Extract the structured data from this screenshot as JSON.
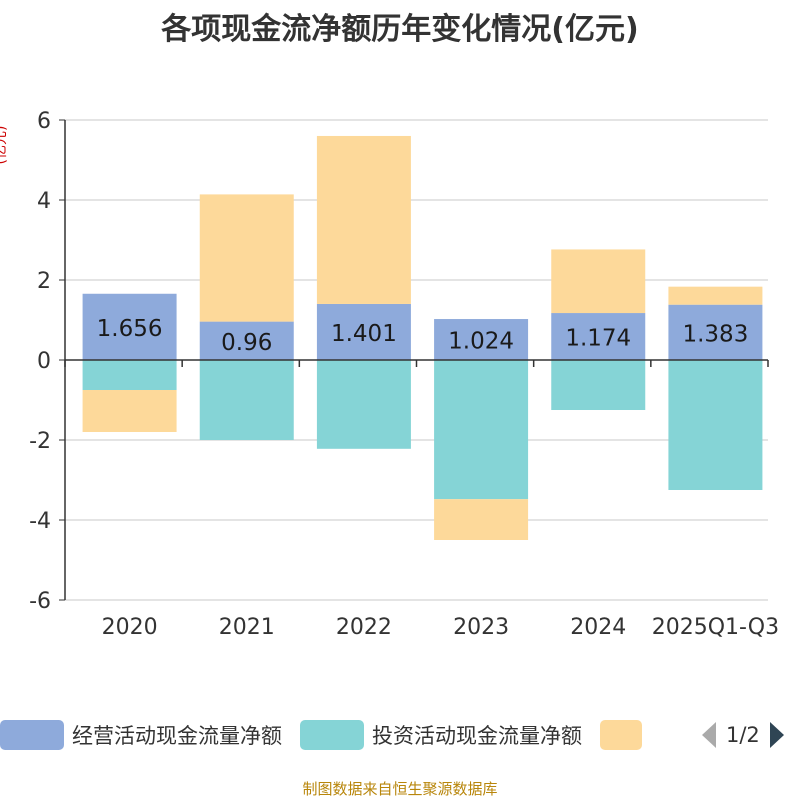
{
  "chart_data": {
    "type": "bar",
    "stacked": true,
    "title": "各项现金流净额历年变化情况(亿元)",
    "ylabel": "(亿元)",
    "ylim": [
      -6,
      6
    ],
    "yticks": [
      6,
      4,
      2,
      0,
      -2,
      -4,
      -6
    ],
    "categories": [
      "2020",
      "2021",
      "2022",
      "2023",
      "2024",
      "2025Q1-Q3"
    ],
    "series": [
      {
        "name": "经营活动现金流量净额",
        "color": "#8eaadb",
        "values": [
          1.656,
          0.96,
          1.401,
          1.024,
          1.174,
          1.383
        ],
        "show_labels": true
      },
      {
        "name": "投资活动现金流量净额",
        "color": "#85d4d6",
        "values": [
          -0.75,
          -2.0,
          -2.22,
          -3.48,
          -1.25,
          -3.25
        ],
        "show_labels": false
      },
      {
        "name": "",
        "color": "#fdd99a",
        "values": [
          -1.05,
          3.18,
          4.2,
          -1.02,
          1.59,
          0.45
        ],
        "show_labels": false
      }
    ],
    "legend_page": "1/2",
    "grid": true
  },
  "source": "制图数据来自恒生聚源数据库"
}
